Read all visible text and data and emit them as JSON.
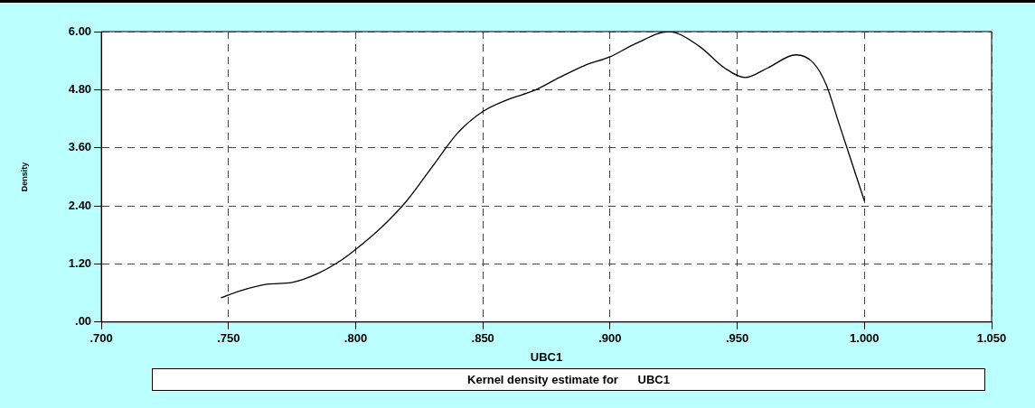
{
  "chart_data": {
    "type": "line",
    "xlabel": "UBC1",
    "ylabel": "Density",
    "annotations": [
      "Kernel density estimate for      UBC1"
    ],
    "x": [
      0.747,
      0.755,
      0.765,
      0.775,
      0.785,
      0.795,
      0.8,
      0.81,
      0.82,
      0.83,
      0.84,
      0.85,
      0.86,
      0.87,
      0.88,
      0.89,
      0.9,
      0.91,
      0.923,
      0.935,
      0.945,
      0.953,
      0.962,
      0.973,
      0.98,
      0.985,
      0.99,
      0.995,
      1.0
    ],
    "series": [
      {
        "color": "#000000",
        "values": [
          0.5,
          0.65,
          0.78,
          0.82,
          1.0,
          1.3,
          1.5,
          1.95,
          2.5,
          3.2,
          3.9,
          4.35,
          4.6,
          4.78,
          5.05,
          5.3,
          5.48,
          5.75,
          6.0,
          5.7,
          5.25,
          5.05,
          5.25,
          5.52,
          5.35,
          4.9,
          4.1,
          3.3,
          2.5
        ]
      }
    ],
    "xlim": [
      0.7,
      1.05
    ],
    "xticks": [
      {
        "value": 0.7,
        "label": ".700"
      },
      {
        "value": 0.75,
        "label": ".750"
      },
      {
        "value": 0.8,
        "label": ".800"
      },
      {
        "value": 0.85,
        "label": ".850"
      },
      {
        "value": 0.9,
        "label": ".900"
      },
      {
        "value": 0.95,
        "label": ".950"
      },
      {
        "value": 1.0,
        "label": "1.000"
      },
      {
        "value": 1.05,
        "label": "1.050"
      }
    ],
    "ylim": [
      0,
      6
    ],
    "yticks": [
      {
        "value": 0,
        "label": ".00"
      },
      {
        "value": 1.2,
        "label": "1.20"
      },
      {
        "value": 2.4,
        "label": "2.40"
      },
      {
        "value": 3.6,
        "label": "3.60"
      },
      {
        "value": 4.8,
        "label": "4.80"
      },
      {
        "value": 6,
        "label": "6.00"
      }
    ],
    "grid": true,
    "legend": false,
    "marker": "none",
    "line_style": "solid"
  }
}
